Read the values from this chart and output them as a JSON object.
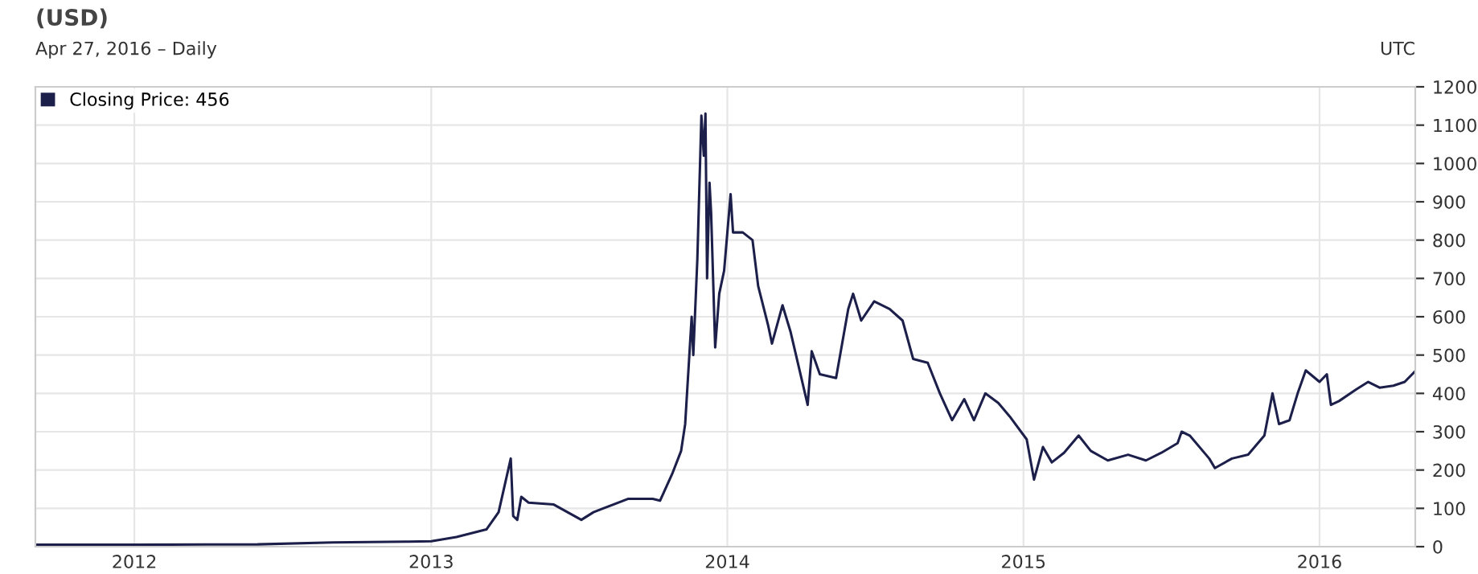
{
  "chart_data": {
    "type": "line",
    "title": "(USD)",
    "subtitle": "Apr 27, 2016 – Daily",
    "annotations": [
      "UTC"
    ],
    "x": [
      "2011-09-01",
      "2012-01-01",
      "2012-06-01",
      "2012-09-01",
      "2012-12-01",
      "2013-01-01",
      "2013-02-01",
      "2013-03-10",
      "2013-03-25",
      "2013-04-09",
      "2013-04-12",
      "2013-04-17",
      "2013-04-22",
      "2013-05-01",
      "2013-06-01",
      "2013-07-05",
      "2013-07-20",
      "2013-08-01",
      "2013-09-01",
      "2013-10-01",
      "2013-10-10",
      "2013-10-25",
      "2013-11-05",
      "2013-11-10",
      "2013-11-18",
      "2013-11-20",
      "2013-11-25",
      "2013-11-30",
      "2013-12-03",
      "2013-12-05",
      "2013-12-07",
      "2013-12-10",
      "2013-12-12",
      "2013-12-17",
      "2013-12-22",
      "2013-12-28",
      "2014-01-05",
      "2014-01-08",
      "2014-01-20",
      "2014-02-01",
      "2014-02-08",
      "2014-02-20",
      "2014-02-25",
      "2014-03-10",
      "2014-03-20",
      "2014-04-10",
      "2014-04-15",
      "2014-04-25",
      "2014-05-15",
      "2014-05-30",
      "2014-06-05",
      "2014-06-15",
      "2014-07-01",
      "2014-07-20",
      "2014-08-05",
      "2014-08-18",
      "2014-09-05",
      "2014-09-20",
      "2014-10-05",
      "2014-10-20",
      "2014-11-01",
      "2014-11-15",
      "2014-12-01",
      "2014-12-15",
      "2015-01-05",
      "2015-01-14",
      "2015-01-25",
      "2015-02-05",
      "2015-02-20",
      "2015-03-10",
      "2015-03-25",
      "2015-04-15",
      "2015-05-10",
      "2015-06-01",
      "2015-06-20",
      "2015-07-10",
      "2015-07-15",
      "2015-07-25",
      "2015-08-18",
      "2015-08-25",
      "2015-09-15",
      "2015-10-05",
      "2015-10-25",
      "2015-11-04",
      "2015-11-12",
      "2015-11-25",
      "2015-12-05",
      "2015-12-15",
      "2016-01-01",
      "2016-01-10",
      "2016-01-15",
      "2016-01-25",
      "2016-02-15",
      "2016-03-01",
      "2016-03-15",
      "2016-04-01",
      "2016-04-15",
      "2016-04-27"
    ],
    "series": [
      {
        "name": "Closing Price: 456",
        "color": "#1c1f4a",
        "values": [
          5,
          5,
          6,
          11,
          13,
          14,
          25,
          45,
          90,
          230,
          80,
          70,
          130,
          115,
          110,
          70,
          90,
          100,
          125,
          125,
          120,
          190,
          250,
          320,
          600,
          500,
          750,
          1125,
          1020,
          1130,
          700,
          950,
          870,
          520,
          660,
          720,
          920,
          820,
          820,
          800,
          680,
          580,
          530,
          630,
          560,
          370,
          510,
          450,
          440,
          620,
          660,
          590,
          640,
          620,
          590,
          490,
          480,
          400,
          330,
          385,
          330,
          400,
          375,
          340,
          280,
          175,
          260,
          220,
          245,
          290,
          250,
          225,
          240,
          225,
          245,
          270,
          300,
          290,
          230,
          205,
          230,
          240,
          290,
          400,
          320,
          330,
          400,
          460,
          430,
          450,
          370,
          380,
          410,
          430,
          415,
          420,
          430,
          456
        ]
      }
    ],
    "xlim": [
      "2011-09-01",
      "2016-04-28"
    ],
    "xticks": [
      {
        "value": "2012-01-01",
        "label": "2012"
      },
      {
        "value": "2013-01-01",
        "label": "2013"
      },
      {
        "value": "2014-01-01",
        "label": "2014"
      },
      {
        "value": "2015-01-01",
        "label": "2015"
      },
      {
        "value": "2016-01-01",
        "label": "2016"
      }
    ],
    "ylim": [
      0,
      1200
    ],
    "yticks": [
      0,
      100,
      200,
      300,
      400,
      500,
      600,
      700,
      800,
      900,
      1000,
      1100,
      1200
    ],
    "grid": true,
    "legend": "top left",
    "marker": "none",
    "line_style": "solid"
  }
}
